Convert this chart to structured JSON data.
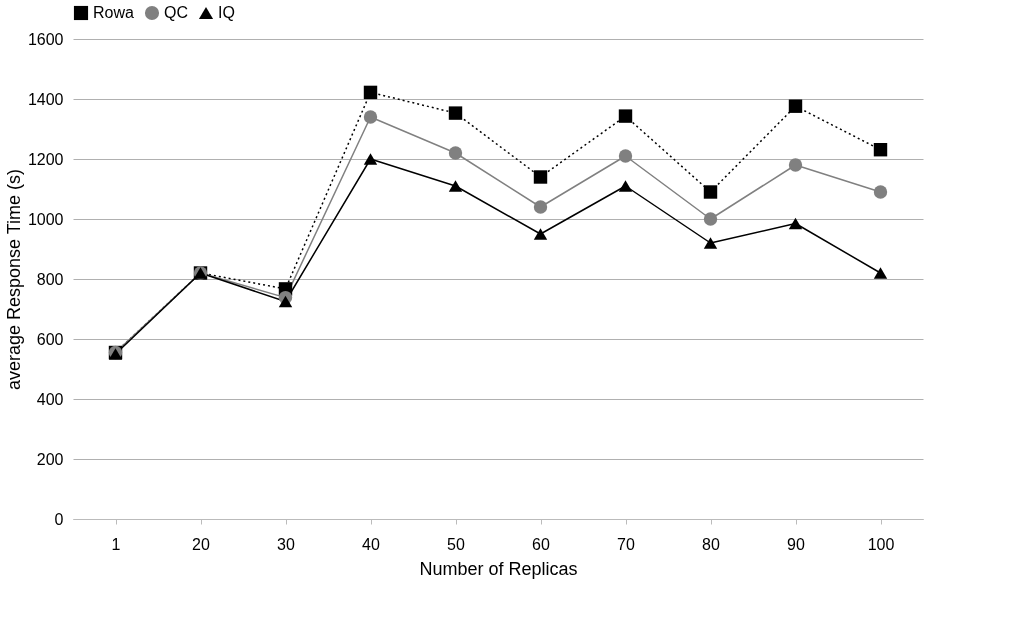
{
  "chart_data": {
    "type": "line",
    "xlabel": "Number of Replicas",
    "ylabel": "average Response Time (s)",
    "categories": [
      "1",
      "20",
      "30",
      "40",
      "50",
      "60",
      "70",
      "80",
      "90",
      "100"
    ],
    "series": [
      {
        "name": "Rowa",
        "color": "#000000",
        "marker": "square",
        "line_style": "dotted",
        "values": [
          555,
          820,
          767,
          1422,
          1353,
          1140,
          1343,
          1090,
          1376,
          1231
        ]
      },
      {
        "name": "QC",
        "color": "#808080",
        "marker": "circle",
        "line_style": "solid",
        "values": [
          555,
          820,
          738,
          1340,
          1220,
          1040,
          1210,
          1000,
          1180,
          1090
        ]
      },
      {
        "name": "IQ",
        "color": "#000000",
        "marker": "triangle",
        "line_style": "solid",
        "values": [
          550,
          820,
          725,
          1200,
          1110,
          950,
          1110,
          920,
          985,
          820
        ]
      }
    ],
    "ylim": [
      0,
      1600
    ],
    "yticks": [
      0,
      200,
      400,
      600,
      800,
      1000,
      1200,
      1400,
      1600
    ],
    "grid": "y",
    "legend": "top"
  }
}
